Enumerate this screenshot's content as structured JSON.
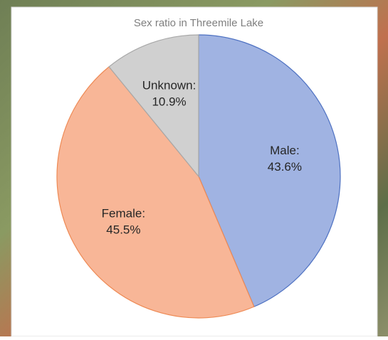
{
  "chart_data": {
    "type": "pie",
    "title": "Sex ratio in Threemile Lake",
    "categories": [
      "Male:",
      "Female:",
      "Unknown:"
    ],
    "values": [
      43.6,
      45.5,
      10.9
    ],
    "value_labels": [
      "43.6%",
      "45.5%",
      "10.9%"
    ],
    "colors": [
      "#a0b3e2",
      "#f8b697",
      "#d0d0d0"
    ],
    "edge_colors": [
      "#4f72c2",
      "#ee8a55",
      "#a8a8a8"
    ]
  }
}
